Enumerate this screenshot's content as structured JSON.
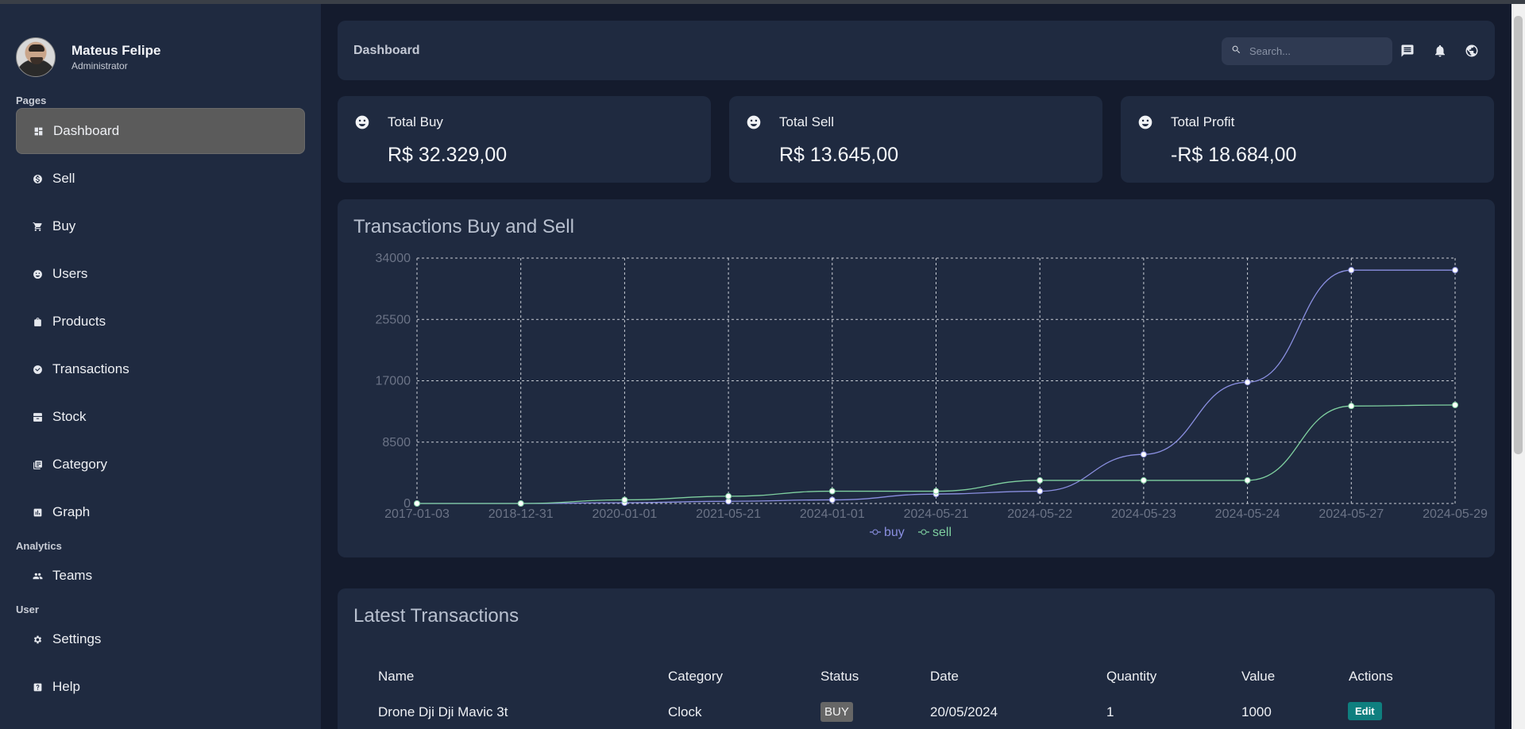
{
  "user": {
    "name": "Mateus Felipe",
    "role": "Administrator"
  },
  "sidebar": {
    "sections": {
      "pages": "Pages",
      "analytics": "Analytics",
      "user": "User"
    },
    "items": [
      {
        "label": "Dashboard",
        "icon": "dashboard-icon",
        "active": true
      },
      {
        "label": "Sell",
        "icon": "dollar-icon"
      },
      {
        "label": "Buy",
        "icon": "cart-icon"
      },
      {
        "label": "Users",
        "icon": "users-face-icon"
      },
      {
        "label": "Products",
        "icon": "bag-icon"
      },
      {
        "label": "Transactions",
        "icon": "transactions-icon"
      },
      {
        "label": "Stock",
        "icon": "stock-icon"
      },
      {
        "label": "Category",
        "icon": "category-icon"
      },
      {
        "label": "Graph",
        "icon": "graph-icon"
      },
      {
        "label": "Teams",
        "icon": "team-icon"
      },
      {
        "label": "Settings",
        "icon": "gear-icon"
      },
      {
        "label": "Help",
        "icon": "help-icon"
      }
    ]
  },
  "header": {
    "title": "Dashboard",
    "search_placeholder": "Search...",
    "icons": [
      "chat-icon",
      "bell-icon",
      "globe-icon"
    ]
  },
  "stats": [
    {
      "label": "Total Buy",
      "value": "R$ 32.329,00"
    },
    {
      "label": "Total Sell",
      "value": "R$ 13.645,00"
    },
    {
      "label": "Total Profit",
      "value": "-R$ 18.684,00"
    }
  ],
  "chart_data": {
    "type": "line",
    "title": "Transactions Buy and Sell",
    "categories": [
      "2017-01-03",
      "2018-12-31",
      "2020-01-01",
      "2021-05-21",
      "2024-01-01",
      "2024-05-21",
      "2024-05-22",
      "2024-05-23",
      "2024-05-24",
      "2024-05-27",
      "2024-05-29"
    ],
    "series": [
      {
        "name": "buy",
        "color": "#8a8fe0",
        "values": [
          0,
          0,
          100,
          300,
          500,
          1300,
          1700,
          6800,
          16800,
          32329,
          32329
        ]
      },
      {
        "name": "sell",
        "color": "#7fd0a0",
        "values": [
          0,
          0,
          500,
          1000,
          1700,
          1700,
          3200,
          3200,
          3200,
          13500,
          13645
        ]
      }
    ],
    "ylim": [
      0,
      34000
    ],
    "yticks": [
      0,
      8500,
      17000,
      25500,
      34000
    ],
    "grid": true,
    "legend": "bottom"
  },
  "table": {
    "title": "Latest Transactions",
    "headers": [
      "Name",
      "Category",
      "Status",
      "Date",
      "Quantity",
      "Value",
      "Actions"
    ],
    "rows": [
      {
        "name": "Drone Dji Dji Mavic 3t",
        "category": "Clock",
        "status": "BUY",
        "date": "20/05/2024",
        "quantity": "1",
        "value": "1000",
        "action": "Edit"
      }
    ]
  }
}
